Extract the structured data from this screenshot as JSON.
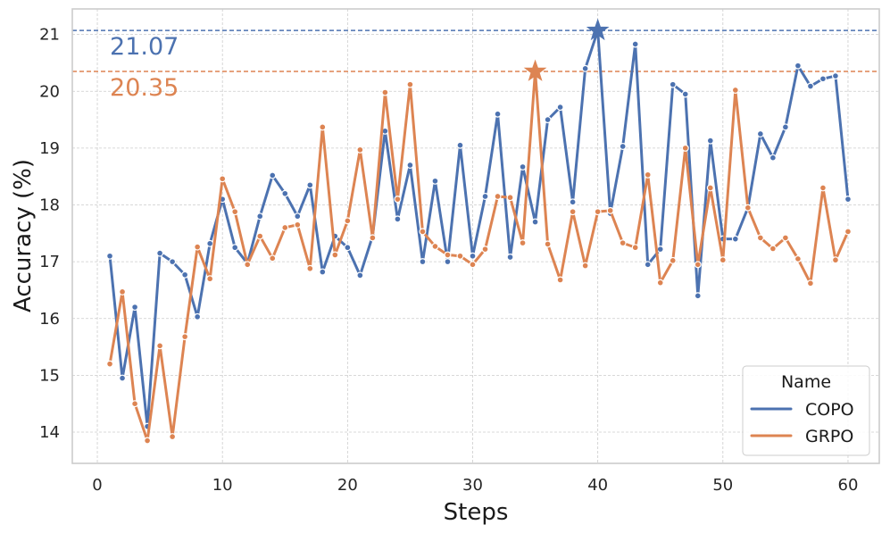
{
  "chart_data": {
    "type": "line",
    "xlabel": "Steps",
    "ylabel": "Accuracy (%)",
    "xlim": [
      -2,
      62.5
    ],
    "ylim": [
      13.45,
      21.45
    ],
    "xticks": [
      0,
      10,
      20,
      30,
      40,
      50,
      60
    ],
    "yticks": [
      14,
      15,
      16,
      17,
      18,
      19,
      20,
      21
    ],
    "grid": true,
    "legend": {
      "title": "Name",
      "position": "bottom-right"
    },
    "x": [
      1,
      2,
      3,
      4,
      5,
      6,
      7,
      8,
      9,
      10,
      11,
      12,
      13,
      14,
      15,
      16,
      17,
      18,
      19,
      20,
      21,
      22,
      23,
      24,
      25,
      26,
      27,
      28,
      29,
      30,
      31,
      32,
      33,
      34,
      35,
      36,
      37,
      38,
      39,
      40,
      41,
      42,
      43,
      44,
      45,
      46,
      47,
      48,
      49,
      50,
      51,
      52,
      53,
      54,
      55,
      56,
      57,
      58,
      59,
      60
    ],
    "series": [
      {
        "name": "COPO",
        "color": "#4c72b0",
        "values": [
          17.1,
          14.95,
          16.2,
          14.1,
          17.15,
          17.0,
          16.77,
          16.03,
          17.32,
          18.1,
          17.25,
          16.97,
          17.8,
          18.52,
          18.2,
          17.8,
          18.35,
          16.82,
          17.45,
          17.25,
          16.76,
          17.45,
          19.3,
          17.75,
          18.7,
          17.0,
          18.42,
          17.0,
          19.05,
          17.1,
          18.15,
          19.6,
          17.08,
          18.67,
          17.7,
          19.5,
          19.72,
          18.05,
          20.4,
          21.07,
          17.85,
          19.03,
          20.83,
          16.95,
          17.22,
          20.12,
          19.95,
          16.4,
          19.13,
          17.4,
          17.4,
          17.95,
          19.25,
          18.83,
          19.37,
          20.45,
          20.09,
          20.22,
          20.27,
          18.1
        ]
      },
      {
        "name": "GRPO",
        "color": "#dd8452",
        "values": [
          15.2,
          16.47,
          14.5,
          13.85,
          15.52,
          13.92,
          15.68,
          17.26,
          16.7,
          18.46,
          17.88,
          16.95,
          17.45,
          17.06,
          17.6,
          17.65,
          16.88,
          19.37,
          17.12,
          17.72,
          18.97,
          17.42,
          19.98,
          18.1,
          20.12,
          17.53,
          17.27,
          17.12,
          17.1,
          16.95,
          17.22,
          18.15,
          18.13,
          17.33,
          20.35,
          17.31,
          16.68,
          17.88,
          16.93,
          17.88,
          17.9,
          17.33,
          17.25,
          18.53,
          16.63,
          17.02,
          19.0,
          16.95,
          18.3,
          17.03,
          20.02,
          17.95,
          17.42,
          17.23,
          17.42,
          17.05,
          16.62,
          18.3,
          17.03,
          17.53
        ]
      }
    ],
    "reference_lines": [
      {
        "series": "COPO",
        "value": 21.07,
        "label": "21.07",
        "peak_step": 40
      },
      {
        "series": "GRPO",
        "value": 20.35,
        "label": "20.35",
        "peak_step": 35
      }
    ]
  }
}
